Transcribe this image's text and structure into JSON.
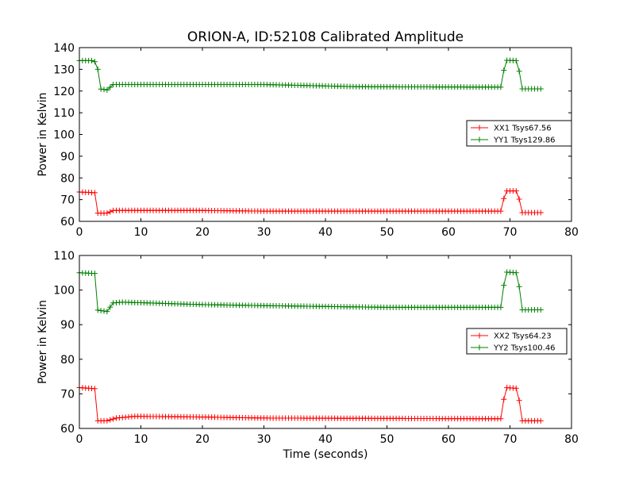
{
  "figure": {
    "title": "ORION-A, ID:52108 Calibrated Amplitude"
  },
  "chart_data": [
    {
      "type": "line",
      "ylabel": "Power in Kelvin",
      "xlabel": "",
      "xlim": [
        0,
        80
      ],
      "ylim": [
        60,
        140
      ],
      "xticks": [
        0,
        10,
        20,
        30,
        40,
        50,
        60,
        70,
        80
      ],
      "yticks": [
        60,
        70,
        80,
        90,
        100,
        110,
        120,
        130,
        140
      ],
      "grid": false,
      "legend": "center-right",
      "series": [
        {
          "name": "XX1 Tsys67.56",
          "color": "#ff0000",
          "keyframes": [
            [
              0,
              73.5
            ],
            [
              2.5,
              73.2
            ],
            [
              3,
              63.8
            ],
            [
              4.5,
              63.8
            ],
            [
              5.5,
              65.0
            ],
            [
              20,
              65.0
            ],
            [
              30,
              64.7
            ],
            [
              68.5,
              64.7
            ],
            [
              69.3,
              74.0
            ],
            [
              71.2,
              74.0
            ],
            [
              72,
              64.0
            ],
            [
              75.2,
              64.0
            ]
          ]
        },
        {
          "name": "YY1 Tsys129.86",
          "color": "#007f00",
          "keyframes": [
            [
              0,
              134.0
            ],
            [
              2,
              134.0
            ],
            [
              2.5,
              133.5
            ],
            [
              3,
              130.0
            ],
            [
              3.3,
              121.0
            ],
            [
              4.5,
              120.5
            ],
            [
              5.5,
              123.0
            ],
            [
              30,
              123.0
            ],
            [
              45,
              122.0
            ],
            [
              68.5,
              121.8
            ],
            [
              69.3,
              134.2
            ],
            [
              71.2,
              134.0
            ],
            [
              72,
              121.0
            ],
            [
              75.2,
              121.0
            ]
          ]
        }
      ]
    },
    {
      "type": "line",
      "ylabel": "Power in Kelvin",
      "xlabel": "Time (seconds)",
      "xlim": [
        0,
        80
      ],
      "ylim": [
        60,
        110
      ],
      "xticks": [
        0,
        10,
        20,
        30,
        40,
        50,
        60,
        70,
        80
      ],
      "yticks": [
        60,
        70,
        80,
        90,
        100,
        110
      ],
      "grid": false,
      "legend": "center-right",
      "series": [
        {
          "name": "XX2 Tsys64.23",
          "color": "#ff0000",
          "keyframes": [
            [
              0,
              71.8
            ],
            [
              2.5,
              71.5
            ],
            [
              3,
              62.2
            ],
            [
              4.5,
              62.2
            ],
            [
              6,
              63.0
            ],
            [
              9,
              63.5
            ],
            [
              20,
              63.3
            ],
            [
              30,
              63.0
            ],
            [
              68.5,
              62.8
            ],
            [
              69.3,
              71.8
            ],
            [
              71.2,
              71.6
            ],
            [
              72,
              62.2
            ],
            [
              75.2,
              62.2
            ]
          ]
        },
        {
          "name": "YY2 Tsys100.46",
          "color": "#007f00",
          "keyframes": [
            [
              0,
              105.0
            ],
            [
              2.5,
              104.8
            ],
            [
              3,
              94.2
            ],
            [
              4.5,
              93.8
            ],
            [
              5.5,
              96.3
            ],
            [
              7,
              96.5
            ],
            [
              20,
              95.8
            ],
            [
              30,
              95.5
            ],
            [
              50,
              95.0
            ],
            [
              68.5,
              95.0
            ],
            [
              69.3,
              105.2
            ],
            [
              71.2,
              105.0
            ],
            [
              72,
              94.3
            ],
            [
              75.2,
              94.3
            ]
          ]
        }
      ]
    }
  ]
}
